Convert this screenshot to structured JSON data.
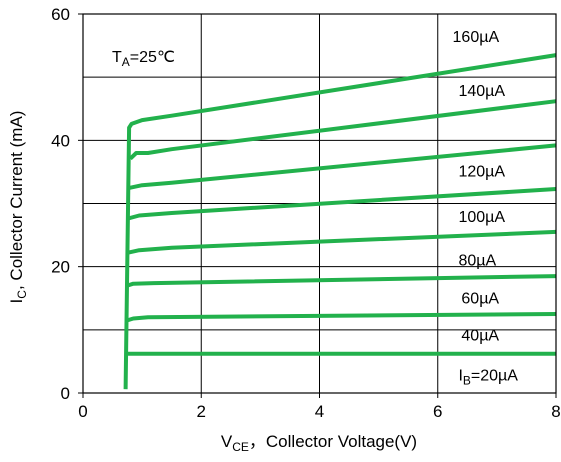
{
  "chart_data": {
    "type": "line",
    "annotation": {
      "main": "T",
      "sub": "A",
      "rest": "=25℃"
    },
    "xlabel": {
      "main": "V",
      "sub": "CE",
      "rest": "，Collector Voltage(V)"
    },
    "ylabel": {
      "main": "I",
      "sub": "C",
      "rest": ", Collector Current (mA)"
    },
    "xlim": [
      0,
      8
    ],
    "ylim": [
      0,
      60
    ],
    "xticks": [
      0,
      2,
      4,
      6,
      8
    ],
    "yticks": [
      0,
      20,
      40,
      60
    ],
    "x_tick_labels": [
      "0",
      "2",
      "4",
      "6",
      "8"
    ],
    "y_tick_labels": [
      "0",
      "20",
      "40",
      "60"
    ],
    "x_gridlines": [
      2,
      4,
      6
    ],
    "y_gridlines": [
      10,
      20,
      30,
      40,
      50
    ],
    "series_color": "#22b14c",
    "series": [
      {
        "name": "I_B=20µA",
        "label_main": "I",
        "label_sub": "B",
        "label_rest": "=20µA",
        "label_at": [
          6.35,
          2.0
        ],
        "points": [
          [
            0.75,
            6.2
          ],
          [
            8.0,
            6.2
          ]
        ]
      },
      {
        "name": "40µA",
        "label_main": "40µA",
        "label_at": [
          6.4,
          8.3
        ],
        "points": [
          [
            0.75,
            11.5
          ],
          [
            0.85,
            11.8
          ],
          [
            1.1,
            12.0
          ],
          [
            8.0,
            12.5
          ]
        ]
      },
      {
        "name": "60µA",
        "label_main": "60µA",
        "label_at": [
          6.4,
          14.2
        ],
        "points": [
          [
            0.75,
            17.0
          ],
          [
            0.85,
            17.3
          ],
          [
            1.2,
            17.4
          ],
          [
            8.0,
            18.5
          ]
        ]
      },
      {
        "name": "80µA",
        "label_main": "80µA",
        "label_at": [
          6.35,
          20.2
        ],
        "points": [
          [
            0.75,
            22.2
          ],
          [
            0.95,
            22.6
          ],
          [
            1.5,
            23.0
          ],
          [
            8.0,
            25.5
          ]
        ]
      },
      {
        "name": "100µA",
        "label_main": "100µA",
        "label_at": [
          6.35,
          27.1
        ],
        "points": [
          [
            0.75,
            27.6
          ],
          [
            0.95,
            28.1
          ],
          [
            1.5,
            28.5
          ],
          [
            8.0,
            32.3
          ]
        ]
      },
      {
        "name": "120µA",
        "label_main": "120µA",
        "label_at": [
          6.35,
          34.3
        ],
        "points": [
          [
            0.75,
            32.4
          ],
          [
            1.0,
            32.9
          ],
          [
            1.5,
            33.3
          ],
          [
            8.0,
            39.2
          ]
        ]
      },
      {
        "name": "140µA",
        "label_main": "140µA",
        "label_at": [
          6.35,
          47.0
        ],
        "points": [
          [
            0.8,
            37.1
          ],
          [
            0.9,
            38.0
          ],
          [
            1.1,
            38.0
          ],
          [
            1.5,
            38.6
          ],
          [
            8.0,
            46.2
          ]
        ]
      },
      {
        "name": "160µA",
        "label_main": "160µA",
        "label_at": [
          6.25,
          55.6
        ],
        "points": [
          [
            0.72,
            0.6
          ],
          [
            0.78,
            42.0
          ],
          [
            0.82,
            42.6
          ],
          [
            1.0,
            43.2
          ],
          [
            1.5,
            43.9
          ],
          [
            8.0,
            53.5
          ]
        ]
      }
    ]
  }
}
